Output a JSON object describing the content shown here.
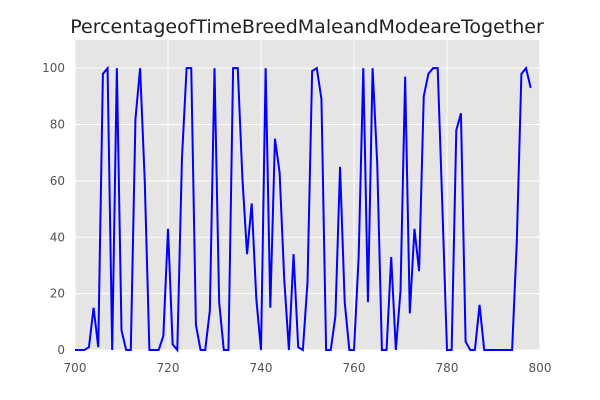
{
  "chart_data": {
    "type": "line",
    "title": "PercentageofTimeBreedMaleandModeareTogether",
    "xlabel": "",
    "ylabel": "",
    "xlim": [
      700,
      800
    ],
    "ylim": [
      0,
      110
    ],
    "xticks": [
      700,
      720,
      740,
      760,
      780,
      800
    ],
    "yticks": [
      0,
      20,
      40,
      60,
      80,
      100
    ],
    "grid": true,
    "legend": "none",
    "colors": {
      "line": "#0000ff",
      "plot_bg": "#e5e5e5",
      "grid": "#ffffff"
    },
    "series": [
      {
        "x": [
          700,
          701,
          702,
          703,
          704,
          705,
          706,
          707,
          708,
          709,
          710,
          711,
          712,
          713,
          714,
          715,
          716,
          717,
          718,
          719,
          720,
          721,
          722,
          723,
          724,
          725,
          726,
          727,
          728,
          729,
          730,
          731,
          732,
          733,
          734,
          735,
          736,
          737,
          738,
          739,
          740,
          741,
          742,
          743,
          744,
          745,
          746,
          747,
          748,
          749,
          750,
          751,
          752,
          753,
          754,
          755,
          756,
          757,
          758,
          759,
          760,
          761,
          762,
          763,
          764,
          765,
          766,
          767,
          768,
          769,
          770,
          771,
          772,
          773,
          774,
          775,
          776,
          777,
          778,
          779,
          780,
          781,
          782,
          783,
          784,
          785,
          786,
          787,
          788,
          789,
          790,
          791,
          792,
          793,
          794,
          795,
          796,
          797,
          798
        ],
        "y": [
          0,
          0,
          0,
          1,
          15,
          1,
          98,
          100,
          0,
          100,
          7,
          0,
          0,
          82,
          100,
          60,
          0,
          0,
          0,
          5,
          43,
          2,
          0,
          68,
          100,
          100,
          9,
          0,
          0,
          14,
          100,
          17,
          0,
          0,
          100,
          100,
          61,
          34,
          52,
          18,
          0,
          100,
          15,
          75,
          63,
          25,
          0,
          34,
          1,
          0,
          24,
          99,
          100,
          89,
          0,
          0,
          12,
          65,
          17,
          0,
          0,
          33,
          100,
          17,
          100,
          66,
          0,
          0,
          33,
          0,
          21,
          97,
          13,
          43,
          28,
          90,
          98,
          100,
          100,
          51,
          0,
          0,
          78,
          84,
          3,
          0,
          0,
          16,
          0,
          0,
          0,
          0,
          0,
          0,
          0,
          38,
          98,
          100,
          93
        ]
      }
    ]
  }
}
